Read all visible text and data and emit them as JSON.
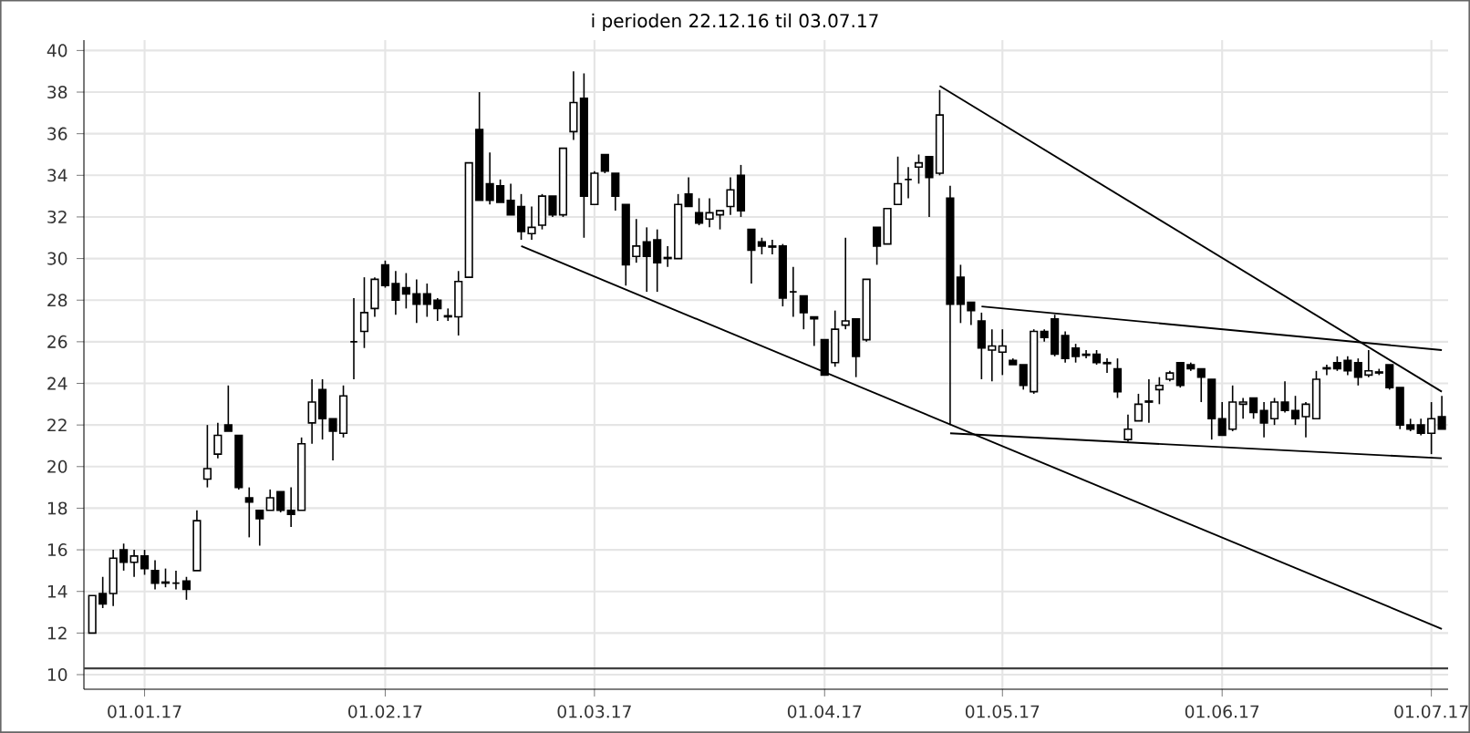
{
  "chart_data": {
    "type": "candlestick",
    "title": "i perioden 22.12.16 til 03.07.17",
    "categories": [
      null,
      null,
      null,
      null,
      null,
      "01.01.17",
      null,
      null,
      null,
      null,
      null,
      null,
      null,
      null,
      null,
      null,
      null,
      null,
      null,
      null,
      null,
      null,
      null,
      null,
      null,
      null,
      null,
      null,
      "01.02.17",
      null,
      null,
      null,
      null,
      null,
      null,
      null,
      null,
      null,
      null,
      null,
      null,
      null,
      null,
      null,
      null,
      null,
      null,
      null,
      "01.03.17",
      null,
      null,
      null,
      null,
      null,
      null,
      null,
      null,
      null,
      null,
      null,
      null,
      null,
      null,
      null,
      null,
      null,
      null,
      null,
      null,
      null,
      "01.04.17",
      null,
      null,
      null,
      null,
      null,
      null,
      null,
      null,
      null,
      null,
      null,
      null,
      null,
      null,
      null,
      null,
      "01.05.17",
      null,
      null,
      null,
      null,
      null,
      null,
      null,
      null,
      null,
      null,
      null,
      null,
      null,
      null,
      null,
      null,
      null,
      null,
      null,
      null,
      "01.06.17",
      null,
      null,
      null,
      null,
      null,
      null,
      null,
      null,
      null,
      null,
      null,
      null,
      null,
      null,
      null,
      null,
      null,
      null,
      null,
      "01.07.17",
      null
    ],
    "ohlc": [
      [
        12.0,
        13.8,
        12.0,
        13.8
      ],
      [
        13.9,
        14.7,
        13.2,
        13.4
      ],
      [
        13.9,
        16.0,
        13.3,
        15.6
      ],
      [
        16.0,
        16.3,
        15.0,
        15.4
      ],
      [
        15.4,
        16.0,
        14.7,
        15.7
      ],
      [
        15.7,
        16.0,
        14.8,
        15.1
      ],
      [
        15.0,
        15.5,
        14.1,
        14.4
      ],
      [
        14.45,
        15.1,
        14.2,
        14.4
      ],
      [
        14.4,
        15.0,
        14.1,
        14.4
      ],
      [
        14.5,
        14.7,
        13.6,
        14.1
      ],
      [
        15.0,
        17.9,
        15.0,
        17.4
      ],
      [
        19.4,
        22.0,
        19.0,
        19.9
      ],
      [
        20.6,
        22.1,
        20.4,
        21.5
      ],
      [
        22.0,
        23.9,
        21.7,
        21.7
      ],
      [
        21.5,
        21.5,
        18.9,
        19.0
      ],
      [
        18.5,
        19.0,
        16.6,
        18.3
      ],
      [
        17.9,
        17.9,
        16.2,
        17.5
      ],
      [
        17.9,
        18.9,
        17.9,
        18.5
      ],
      [
        18.8,
        18.8,
        17.8,
        17.9
      ],
      [
        17.9,
        19.0,
        17.1,
        17.7
      ],
      [
        17.9,
        21.4,
        17.9,
        21.1
      ],
      [
        22.1,
        24.2,
        21.1,
        23.1
      ],
      [
        23.7,
        24.2,
        21.3,
        22.3
      ],
      [
        22.3,
        22.3,
        20.3,
        21.7
      ],
      [
        21.6,
        23.9,
        21.4,
        23.4
      ],
      [
        26.0,
        28.1,
        24.2,
        26.0
      ],
      [
        26.5,
        29.1,
        25.7,
        27.4
      ],
      [
        27.6,
        29.1,
        27.2,
        29.0
      ],
      [
        29.7,
        29.9,
        28.6,
        28.7
      ],
      [
        28.8,
        29.4,
        27.3,
        28.0
      ],
      [
        28.6,
        29.3,
        27.6,
        28.3
      ],
      [
        28.3,
        29.0,
        26.9,
        27.8
      ],
      [
        28.3,
        28.8,
        27.2,
        27.8
      ],
      [
        28.0,
        28.1,
        27.0,
        27.6
      ],
      [
        27.25,
        27.6,
        27.0,
        27.2
      ],
      [
        27.2,
        29.4,
        26.3,
        28.9
      ],
      [
        29.1,
        34.6,
        29.1,
        34.6
      ],
      [
        36.2,
        38.0,
        32.8,
        32.8
      ],
      [
        33.6,
        35.1,
        32.6,
        32.8
      ],
      [
        33.5,
        33.8,
        32.7,
        32.7
      ],
      [
        32.8,
        33.6,
        32.1,
        32.1
      ],
      [
        32.5,
        33.1,
        30.9,
        31.3
      ],
      [
        31.2,
        32.5,
        30.9,
        31.5
      ],
      [
        31.6,
        33.1,
        31.4,
        33.0
      ],
      [
        33.0,
        33.0,
        32.0,
        32.1
      ],
      [
        32.1,
        35.3,
        32.0,
        35.3
      ],
      [
        36.1,
        39.0,
        35.7,
        37.5
      ],
      [
        37.7,
        38.9,
        31.0,
        33.0
      ],
      [
        32.6,
        34.2,
        32.6,
        34.1
      ],
      [
        35.0,
        35.0,
        34.1,
        34.2
      ],
      [
        34.1,
        34.1,
        32.3,
        33.0
      ],
      [
        32.6,
        32.6,
        28.7,
        29.7
      ],
      [
        30.1,
        31.9,
        29.8,
        30.6
      ],
      [
        30.8,
        31.5,
        28.4,
        30.1
      ],
      [
        30.9,
        31.4,
        28.4,
        29.8
      ],
      [
        30.0,
        30.6,
        29.6,
        30.05
      ],
      [
        30.0,
        33.1,
        30.0,
        32.6
      ],
      [
        33.1,
        33.9,
        32.5,
        32.5
      ],
      [
        32.2,
        32.9,
        31.6,
        31.7
      ],
      [
        31.9,
        32.9,
        31.5,
        32.2
      ],
      [
        32.1,
        32.3,
        31.4,
        32.3
      ],
      [
        32.5,
        33.9,
        32.1,
        33.3
      ],
      [
        34.0,
        34.5,
        32.0,
        32.3
      ],
      [
        31.4,
        31.4,
        28.8,
        30.4
      ],
      [
        30.8,
        31.0,
        30.2,
        30.6
      ],
      [
        30.6,
        30.9,
        30.2,
        30.55
      ],
      [
        30.6,
        30.7,
        27.7,
        28.1
      ],
      [
        28.4,
        29.6,
        27.2,
        28.4
      ],
      [
        28.2,
        28.2,
        26.6,
        27.4
      ],
      [
        27.2,
        27.2,
        25.8,
        27.1
      ],
      [
        26.1,
        26.1,
        24.4,
        24.4
      ],
      [
        25.0,
        27.5,
        24.8,
        26.6
      ],
      [
        26.8,
        31.0,
        26.6,
        27.0
      ],
      [
        27.1,
        27.1,
        24.3,
        25.3
      ],
      [
        26.1,
        29.0,
        26.0,
        29.0
      ],
      [
        31.5,
        31.5,
        29.7,
        30.6
      ],
      [
        30.7,
        32.4,
        30.7,
        32.4
      ],
      [
        32.6,
        34.9,
        32.6,
        33.6
      ],
      [
        33.8,
        34.4,
        32.9,
        33.8
      ],
      [
        34.4,
        35.0,
        33.6,
        34.6
      ],
      [
        34.9,
        34.9,
        32.0,
        33.9
      ],
      [
        34.1,
        38.1,
        34.0,
        36.9
      ],
      [
        32.9,
        33.5,
        22.0,
        27.8
      ],
      [
        29.1,
        29.7,
        26.9,
        27.8
      ],
      [
        27.9,
        27.9,
        26.8,
        27.5
      ],
      [
        27.0,
        27.4,
        24.2,
        25.7
      ],
      [
        25.6,
        26.6,
        24.1,
        25.8
      ],
      [
        25.5,
        26.6,
        24.4,
        25.8
      ],
      [
        25.1,
        25.2,
        24.9,
        24.9
      ],
      [
        24.9,
        24.9,
        23.7,
        23.9
      ],
      [
        23.6,
        26.6,
        23.5,
        26.5
      ],
      [
        26.5,
        26.6,
        26.0,
        26.2
      ],
      [
        27.1,
        27.3,
        25.3,
        25.4
      ],
      [
        26.3,
        26.5,
        25.0,
        25.2
      ],
      [
        25.7,
        25.9,
        25.0,
        25.3
      ],
      [
        25.4,
        25.6,
        25.2,
        25.35
      ],
      [
        25.4,
        25.6,
        24.9,
        25.0
      ],
      [
        25.0,
        25.2,
        24.5,
        24.95
      ],
      [
        24.7,
        25.2,
        23.3,
        23.6
      ],
      [
        21.3,
        22.5,
        21.2,
        21.8
      ],
      [
        22.2,
        23.5,
        22.2,
        23.0
      ],
      [
        23.1,
        24.2,
        22.1,
        23.15
      ],
      [
        23.7,
        24.3,
        23.0,
        23.9
      ],
      [
        24.2,
        24.6,
        24.1,
        24.5
      ],
      [
        25.0,
        25.0,
        23.8,
        23.9
      ],
      [
        24.9,
        25.0,
        24.6,
        24.7
      ],
      [
        24.7,
        24.7,
        23.1,
        24.3
      ],
      [
        24.2,
        24.2,
        21.3,
        22.3
      ],
      [
        22.3,
        23.1,
        21.5,
        21.5
      ],
      [
        21.8,
        23.9,
        21.7,
        23.1
      ],
      [
        23.0,
        23.3,
        22.3,
        23.1
      ],
      [
        23.3,
        23.3,
        22.3,
        22.6
      ],
      [
        22.7,
        23.1,
        21.4,
        22.1
      ],
      [
        22.3,
        23.3,
        22.0,
        23.1
      ],
      [
        23.1,
        24.1,
        22.6,
        22.7
      ],
      [
        22.7,
        23.4,
        22.0,
        22.3
      ],
      [
        22.4,
        23.1,
        21.4,
        23.0
      ],
      [
        22.3,
        24.6,
        22.3,
        24.2
      ],
      [
        24.7,
        24.9,
        24.4,
        24.75
      ],
      [
        25.0,
        25.3,
        24.6,
        24.7
      ],
      [
        25.1,
        25.3,
        24.4,
        24.6
      ],
      [
        25.0,
        25.2,
        23.9,
        24.3
      ],
      [
        24.4,
        25.6,
        24.3,
        24.6
      ],
      [
        24.5,
        24.7,
        24.4,
        24.55
      ],
      [
        24.9,
        24.9,
        23.7,
        23.8
      ],
      [
        23.8,
        23.8,
        21.8,
        22.0
      ],
      [
        22.0,
        22.3,
        21.7,
        21.8
      ],
      [
        22.0,
        22.3,
        21.5,
        21.6
      ],
      [
        21.6,
        23.1,
        20.6,
        22.3
      ],
      [
        22.4,
        23.4,
        21.8,
        21.8
      ]
    ],
    "series": [
      {
        "type": "line",
        "color": "#000000",
        "values": [
          null,
          null,
          null,
          null,
          null,
          null,
          null,
          null,
          null,
          null,
          null,
          null,
          null,
          null,
          null,
          null,
          null,
          null,
          null,
          null,
          null,
          null,
          null,
          null,
          null,
          null,
          null,
          null,
          null,
          null,
          null,
          null,
          null,
          null,
          null,
          null,
          null,
          null,
          null,
          null,
          null,
          30.6,
          null,
          null,
          null,
          null,
          null,
          null,
          null,
          null,
          null,
          null,
          null,
          null,
          null,
          null,
          null,
          null,
          null,
          null,
          null,
          null,
          null,
          null,
          null,
          null,
          null,
          null,
          null,
          null,
          null,
          null,
          null,
          null,
          null,
          null,
          null,
          null,
          null,
          null,
          null,
          null,
          null,
          null,
          null,
          null,
          null,
          null,
          null,
          null,
          null,
          null,
          null,
          null,
          null,
          null,
          null,
          null,
          null,
          null,
          null,
          null,
          null,
          null,
          null,
          null,
          null,
          null,
          null,
          null,
          null,
          null,
          null,
          null,
          null,
          null,
          null,
          null,
          null,
          null,
          null,
          null,
          null,
          null,
          null,
          null,
          null,
          null,
          null,
          12.2
        ]
      },
      {
        "type": "line",
        "color": "#000000",
        "values": [
          null,
          null,
          null,
          null,
          null,
          null,
          null,
          null,
          null,
          null,
          null,
          null,
          null,
          null,
          null,
          null,
          null,
          null,
          null,
          null,
          null,
          null,
          null,
          null,
          null,
          null,
          null,
          null,
          null,
          null,
          null,
          null,
          null,
          null,
          null,
          null,
          null,
          null,
          null,
          null,
          null,
          null,
          null,
          null,
          null,
          null,
          null,
          null,
          null,
          null,
          null,
          null,
          null,
          null,
          null,
          null,
          null,
          null,
          null,
          null,
          null,
          null,
          null,
          null,
          null,
          null,
          null,
          null,
          null,
          null,
          null,
          null,
          null,
          null,
          null,
          null,
          null,
          null,
          null,
          null,
          null,
          38.3,
          null,
          null,
          null,
          null,
          null,
          null,
          null,
          null,
          null,
          null,
          null,
          null,
          null,
          null,
          null,
          null,
          null,
          null,
          null,
          null,
          null,
          null,
          null,
          null,
          null,
          null,
          null,
          null,
          null,
          null,
          null,
          null,
          null,
          null,
          null,
          null,
          null,
          null,
          null,
          null,
          null,
          null,
          null,
          null,
          null,
          null,
          null,
          23.6
        ]
      },
      {
        "type": "line",
        "color": "#000000",
        "values": [
          null,
          null,
          null,
          null,
          null,
          null,
          null,
          null,
          null,
          null,
          null,
          null,
          null,
          null,
          null,
          null,
          null,
          null,
          null,
          null,
          null,
          null,
          null,
          null,
          null,
          null,
          null,
          null,
          null,
          null,
          null,
          null,
          null,
          null,
          null,
          null,
          null,
          null,
          null,
          null,
          null,
          null,
          null,
          null,
          null,
          null,
          null,
          null,
          null,
          null,
          null,
          null,
          null,
          null,
          null,
          null,
          null,
          null,
          null,
          null,
          null,
          null,
          null,
          null,
          null,
          null,
          null,
          null,
          null,
          null,
          null,
          null,
          null,
          null,
          null,
          null,
          null,
          null,
          null,
          null,
          null,
          null,
          null,
          null,
          null,
          27.7,
          null,
          null,
          null,
          null,
          null,
          null,
          null,
          null,
          null,
          null,
          null,
          null,
          null,
          null,
          null,
          null,
          null,
          null,
          null,
          null,
          null,
          null,
          null,
          null,
          null,
          null,
          null,
          null,
          null,
          null,
          null,
          null,
          null,
          null,
          null,
          null,
          null,
          null,
          null,
          null,
          null,
          null,
          null,
          25.6
        ]
      },
      {
        "type": "line",
        "color": "#000000",
        "values": [
          null,
          null,
          null,
          null,
          null,
          null,
          null,
          null,
          null,
          null,
          null,
          null,
          null,
          null,
          null,
          null,
          null,
          null,
          null,
          null,
          null,
          null,
          null,
          null,
          null,
          null,
          null,
          null,
          null,
          null,
          null,
          null,
          null,
          null,
          null,
          null,
          null,
          null,
          null,
          null,
          null,
          null,
          null,
          null,
          null,
          null,
          null,
          null,
          null,
          null,
          null,
          null,
          null,
          null,
          null,
          null,
          null,
          null,
          null,
          null,
          null,
          null,
          null,
          null,
          null,
          null,
          null,
          null,
          null,
          null,
          null,
          null,
          null,
          null,
          null,
          null,
          null,
          null,
          null,
          null,
          null,
          null,
          21.6,
          null,
          null,
          null,
          null,
          null,
          null,
          null,
          null,
          null,
          null,
          null,
          null,
          null,
          null,
          null,
          null,
          null,
          null,
          null,
          null,
          null,
          null,
          null,
          null,
          null,
          null,
          null,
          null,
          null,
          null,
          null,
          null,
          null,
          null,
          null,
          null,
          null,
          null,
          null,
          null,
          null,
          null,
          null,
          null,
          null,
          null,
          20.4
        ]
      }
    ],
    "ylim": [
      9.3,
      40.5
    ],
    "yticks": [
      10,
      12,
      14,
      16,
      18,
      20,
      22,
      24,
      26,
      28,
      30,
      32,
      34,
      36,
      38,
      40
    ],
    "ref_lines": [
      {
        "axis": "y",
        "value": 10.3,
        "color": "#404040"
      }
    ],
    "grid": true
  }
}
